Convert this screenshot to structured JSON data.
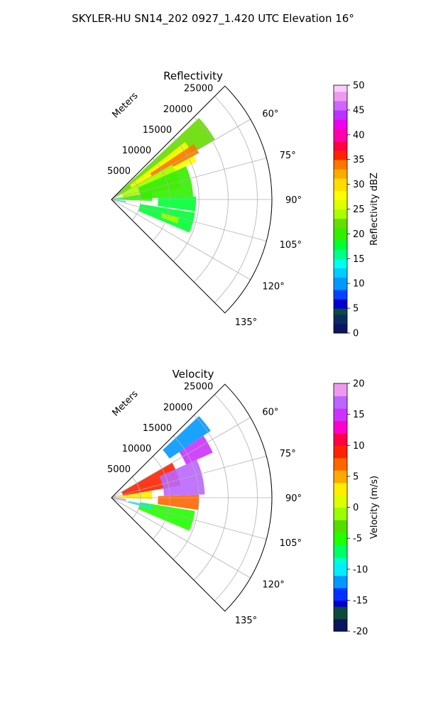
{
  "suptitle": "SKYLER-HU  SN14_202  0927_1.420 UTC Elevation 16°",
  "chart_data": [
    {
      "type": "heatmap",
      "projection": "polar-sector",
      "title": "Reflectivity",
      "theta_range_deg": [
        45,
        135
      ],
      "theta_ticks": [
        "60°",
        "75°",
        "90°",
        "105°",
        "120°",
        "135°"
      ],
      "radial_label": "Meters",
      "radial_ticks": [
        "5000",
        "10000",
        "15000",
        "20000",
        "25000"
      ],
      "rmax": 27500,
      "grid": true,
      "colorbar": {
        "label": "Reflectivity dBZ",
        "range": [
          0,
          50
        ],
        "ticks": [
          "0",
          "5",
          "10",
          "15",
          "20",
          "25",
          "30",
          "35",
          "40",
          "45",
          "50"
        ]
      },
      "echo_regions": [
        {
          "theta": [
            47,
            60
          ],
          "r": [
            0,
            20500
          ],
          "level": 22
        },
        {
          "theta": [
            52,
            66
          ],
          "r": [
            4000,
            16000
          ],
          "level": 27
        },
        {
          "theta": [
            56,
            62
          ],
          "r": [
            8000,
            17000
          ],
          "level": 33
        },
        {
          "theta": [
            60,
            80
          ],
          "r": [
            2000,
            12000
          ],
          "level": 24
        },
        {
          "theta": [
            66,
            88
          ],
          "r": [
            5000,
            14000
          ],
          "level": 19
        },
        {
          "theta": [
            80,
            92
          ],
          "r": [
            0,
            7000
          ],
          "level": 20
        },
        {
          "theta": [
            88,
            98
          ],
          "r": [
            8000,
            14500
          ],
          "level": 18
        },
        {
          "theta": [
            99,
            113
          ],
          "r": [
            5000,
            14500
          ],
          "level": 17
        },
        {
          "theta": [
            105,
            110
          ],
          "r": [
            9000,
            12000
          ],
          "level": 23
        },
        {
          "theta": [
            96,
            101
          ],
          "r": [
            0,
            2500
          ],
          "level": 12
        }
      ]
    },
    {
      "type": "heatmap",
      "projection": "polar-sector",
      "title": "Velocity",
      "theta_range_deg": [
        45,
        135
      ],
      "theta_ticks": [
        "60°",
        "75°",
        "90°",
        "105°",
        "120°",
        "135°"
      ],
      "radial_label": "Meters",
      "radial_ticks": [
        "5000",
        "10000",
        "15000",
        "20000",
        "25000"
      ],
      "rmax": 27500,
      "grid": true,
      "colorbar": {
        "label": "Velocity (m/s)",
        "range": [
          -20,
          20
        ],
        "ticks": [
          "-20",
          "-15",
          "-10",
          "-5",
          "0",
          "5",
          "10",
          "15",
          "20"
        ]
      },
      "echo_regions": [
        {
          "theta": [
            47,
            56
          ],
          "r": [
            12000,
            20500
          ],
          "level": -12
        },
        {
          "theta": [
            56,
            66
          ],
          "r": [
            14000,
            19000
          ],
          "level": 14
        },
        {
          "theta": [
            60,
            80
          ],
          "r": [
            2000,
            12000
          ],
          "level": 9
        },
        {
          "theta": [
            66,
            88
          ],
          "r": [
            9000,
            16000
          ],
          "level": 16
        },
        {
          "theta": [
            80,
            92
          ],
          "r": [
            0,
            7000
          ],
          "level": 2
        },
        {
          "theta": [
            88,
            98
          ],
          "r": [
            8000,
            15000
          ],
          "level": 6
        },
        {
          "theta": [
            99,
            113
          ],
          "r": [
            5000,
            14500
          ],
          "level": -5
        },
        {
          "theta": [
            101,
            106
          ],
          "r": [
            3000,
            7000
          ],
          "level": -11
        },
        {
          "theta": [
            96,
            101
          ],
          "r": [
            0,
            2500
          ],
          "level": 16
        }
      ]
    }
  ]
}
